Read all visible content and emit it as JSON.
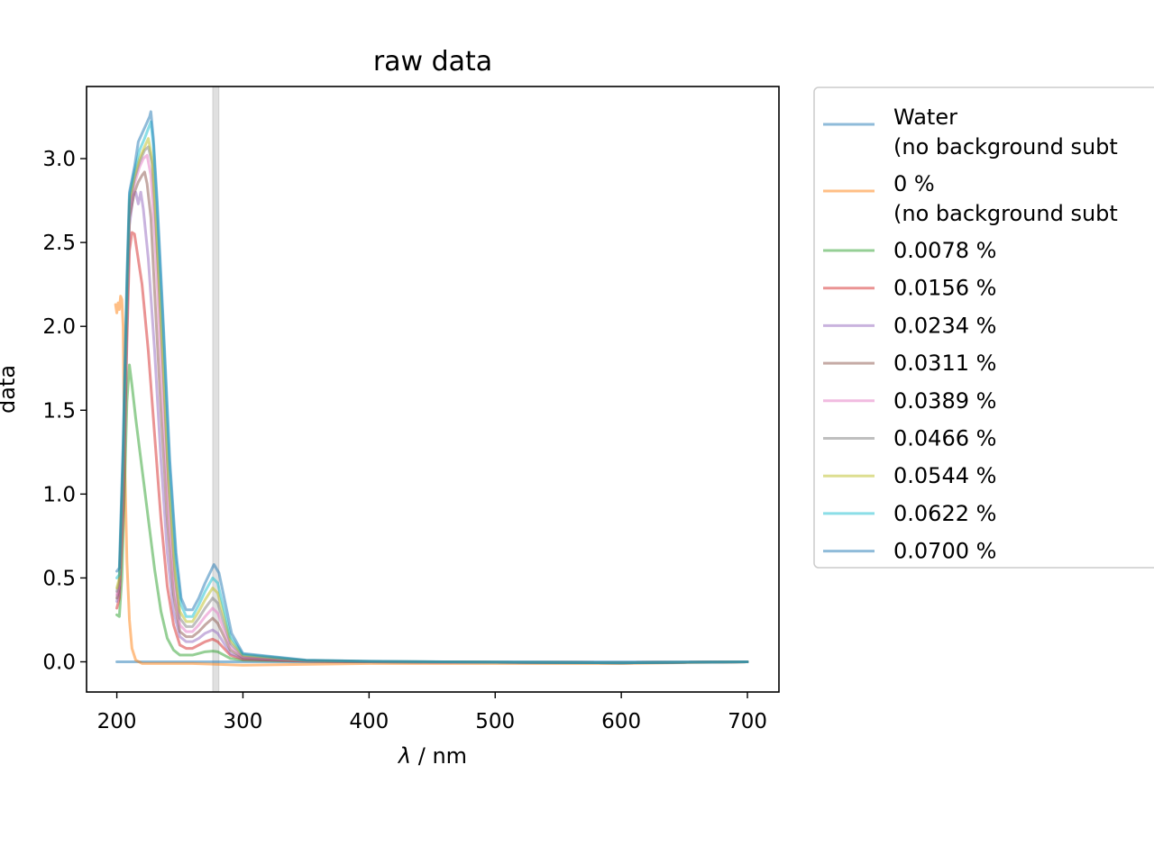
{
  "chart_data": {
    "type": "line",
    "title": "raw data",
    "xlabel_symbol": "λ",
    "xlabel_unit": " / nm",
    "ylabel": "data",
    "xlim": [
      176,
      725
    ],
    "ylim": [
      -0.18,
      3.43
    ],
    "xticks": [
      200,
      300,
      400,
      500,
      600,
      700
    ],
    "yticks": [
      0.0,
      0.5,
      1.0,
      1.5,
      2.0,
      2.5,
      3.0
    ],
    "ytick_labels": [
      "0.0",
      "0.5",
      "1.0",
      "1.5",
      "2.0",
      "2.5",
      "3.0"
    ],
    "vband": [
      276,
      281
    ],
    "grid": false,
    "legend_position": "outside-right",
    "series": [
      {
        "name": "Water\n(no background subt",
        "color": "#1f77b4",
        "points": [
          [
            200,
            0.0
          ],
          [
            210,
            0.0
          ],
          [
            230,
            0.0
          ],
          [
            300,
            0.0
          ],
          [
            400,
            0.0
          ],
          [
            500,
            0.0
          ],
          [
            600,
            0.0
          ],
          [
            700,
            0.0
          ]
        ]
      },
      {
        "name": "0 %\n(no background subt",
        "color": "#ff7f0e",
        "points": [
          [
            199,
            2.13
          ],
          [
            200,
            2.08
          ],
          [
            201,
            2.14
          ],
          [
            202,
            2.1
          ],
          [
            203,
            2.18
          ],
          [
            204,
            2.16
          ],
          [
            205,
            2.0
          ],
          [
            206,
            1.3
          ],
          [
            208,
            0.6
          ],
          [
            210,
            0.25
          ],
          [
            212,
            0.08
          ],
          [
            215,
            0.01
          ],
          [
            220,
            -0.01
          ],
          [
            230,
            -0.01
          ],
          [
            260,
            -0.01
          ],
          [
            300,
            -0.02
          ],
          [
            400,
            -0.01
          ],
          [
            500,
            -0.01
          ],
          [
            600,
            -0.01
          ],
          [
            700,
            0.0
          ]
        ]
      },
      {
        "name": "0.0078 %",
        "color": "#2ca02c",
        "points": [
          [
            200,
            0.28
          ],
          [
            202,
            0.27
          ],
          [
            204,
            0.5
          ],
          [
            206,
            1.0
          ],
          [
            208,
            1.55
          ],
          [
            210,
            1.77
          ],
          [
            212,
            1.65
          ],
          [
            215,
            1.45
          ],
          [
            220,
            1.15
          ],
          [
            225,
            0.85
          ],
          [
            230,
            0.55
          ],
          [
            235,
            0.3
          ],
          [
            240,
            0.14
          ],
          [
            245,
            0.07
          ],
          [
            250,
            0.04
          ],
          [
            255,
            0.04
          ],
          [
            260,
            0.04
          ],
          [
            265,
            0.05
          ],
          [
            270,
            0.06
          ],
          [
            276,
            0.064
          ],
          [
            280,
            0.06
          ],
          [
            285,
            0.04
          ],
          [
            290,
            0.02
          ],
          [
            300,
            0.01
          ],
          [
            350,
            0.003
          ],
          [
            400,
            0.0
          ],
          [
            500,
            -0.003
          ],
          [
            600,
            -0.006
          ],
          [
            700,
            0.0
          ]
        ]
      },
      {
        "name": "0.0156 %",
        "color": "#d62728",
        "points": [
          [
            200,
            0.32
          ],
          [
            202,
            0.38
          ],
          [
            205,
            0.9
          ],
          [
            208,
            1.9
          ],
          [
            210,
            2.45
          ],
          [
            212,
            2.56
          ],
          [
            214,
            2.55
          ],
          [
            216,
            2.45
          ],
          [
            220,
            2.25
          ],
          [
            225,
            1.85
          ],
          [
            230,
            1.35
          ],
          [
            235,
            0.85
          ],
          [
            240,
            0.45
          ],
          [
            245,
            0.22
          ],
          [
            250,
            0.1
          ],
          [
            255,
            0.08
          ],
          [
            260,
            0.08
          ],
          [
            265,
            0.1
          ],
          [
            270,
            0.12
          ],
          [
            276,
            0.135
          ],
          [
            280,
            0.12
          ],
          [
            285,
            0.08
          ],
          [
            290,
            0.04
          ],
          [
            300,
            0.015
          ],
          [
            350,
            0.004
          ],
          [
            400,
            0.0
          ],
          [
            500,
            -0.003
          ],
          [
            600,
            -0.006
          ],
          [
            700,
            0.0
          ]
        ]
      },
      {
        "name": "0.0234 %",
        "color": "#9467bd",
        "points": [
          [
            200,
            0.36
          ],
          [
            202,
            0.42
          ],
          [
            205,
            1.0
          ],
          [
            208,
            2.0
          ],
          [
            210,
            2.6
          ],
          [
            213,
            2.78
          ],
          [
            215,
            2.8
          ],
          [
            217,
            2.73
          ],
          [
            219,
            2.8
          ],
          [
            221,
            2.7
          ],
          [
            225,
            2.4
          ],
          [
            230,
            1.85
          ],
          [
            235,
            1.2
          ],
          [
            240,
            0.65
          ],
          [
            245,
            0.3
          ],
          [
            250,
            0.15
          ],
          [
            255,
            0.12
          ],
          [
            260,
            0.12
          ],
          [
            265,
            0.14
          ],
          [
            270,
            0.17
          ],
          [
            276,
            0.19
          ],
          [
            280,
            0.17
          ],
          [
            285,
            0.11
          ],
          [
            290,
            0.05
          ],
          [
            300,
            0.02
          ],
          [
            350,
            0.004
          ],
          [
            400,
            0.0
          ],
          [
            500,
            -0.003
          ],
          [
            600,
            -0.006
          ],
          [
            700,
            0.0
          ]
        ]
      },
      {
        "name": "0.0311 %",
        "color": "#8c564b",
        "points": [
          [
            200,
            0.38
          ],
          [
            202,
            0.44
          ],
          [
            205,
            1.05
          ],
          [
            208,
            2.05
          ],
          [
            210,
            2.65
          ],
          [
            214,
            2.8
          ],
          [
            217,
            2.86
          ],
          [
            220,
            2.9
          ],
          [
            222,
            2.92
          ],
          [
            224,
            2.85
          ],
          [
            227,
            2.65
          ],
          [
            230,
            2.2
          ],
          [
            235,
            1.5
          ],
          [
            240,
            0.85
          ],
          [
            245,
            0.4
          ],
          [
            250,
            0.18
          ],
          [
            255,
            0.15
          ],
          [
            260,
            0.15
          ],
          [
            265,
            0.18
          ],
          [
            270,
            0.22
          ],
          [
            276,
            0.26
          ],
          [
            280,
            0.23
          ],
          [
            285,
            0.15
          ],
          [
            290,
            0.07
          ],
          [
            300,
            0.025
          ],
          [
            350,
            0.005
          ],
          [
            400,
            0.0
          ],
          [
            500,
            -0.003
          ],
          [
            600,
            -0.006
          ],
          [
            700,
            0.0
          ]
        ]
      },
      {
        "name": "0.0389 %",
        "color": "#e377c2",
        "points": [
          [
            200,
            0.4
          ],
          [
            202,
            0.46
          ],
          [
            205,
            1.1
          ],
          [
            208,
            2.1
          ],
          [
            210,
            2.7
          ],
          [
            214,
            2.85
          ],
          [
            218,
            2.95
          ],
          [
            221,
            3.0
          ],
          [
            224,
            3.02
          ],
          [
            227,
            2.9
          ],
          [
            230,
            2.55
          ],
          [
            235,
            1.8
          ],
          [
            240,
            1.0
          ],
          [
            245,
            0.48
          ],
          [
            250,
            0.22
          ],
          [
            255,
            0.18
          ],
          [
            260,
            0.18
          ],
          [
            265,
            0.22
          ],
          [
            270,
            0.27
          ],
          [
            276,
            0.32
          ],
          [
            280,
            0.29
          ],
          [
            285,
            0.19
          ],
          [
            290,
            0.09
          ],
          [
            300,
            0.03
          ],
          [
            350,
            0.006
          ],
          [
            400,
            0.001
          ],
          [
            500,
            -0.003
          ],
          [
            600,
            -0.006
          ],
          [
            700,
            0.0
          ]
        ]
      },
      {
        "name": "0.0466 %",
        "color": "#7f7f7f",
        "points": [
          [
            200,
            0.42
          ],
          [
            202,
            0.48
          ],
          [
            205,
            1.15
          ],
          [
            208,
            2.15
          ],
          [
            210,
            2.72
          ],
          [
            214,
            2.88
          ],
          [
            218,
            2.98
          ],
          [
            222,
            3.05
          ],
          [
            225,
            3.07
          ],
          [
            228,
            2.97
          ],
          [
            231,
            2.6
          ],
          [
            236,
            1.85
          ],
          [
            241,
            1.05
          ],
          [
            246,
            0.52
          ],
          [
            250,
            0.26
          ],
          [
            255,
            0.21
          ],
          [
            260,
            0.21
          ],
          [
            265,
            0.26
          ],
          [
            270,
            0.32
          ],
          [
            276,
            0.38
          ],
          [
            280,
            0.35
          ],
          [
            285,
            0.23
          ],
          [
            290,
            0.11
          ],
          [
            300,
            0.035
          ],
          [
            350,
            0.007
          ],
          [
            400,
            0.002
          ],
          [
            500,
            -0.002
          ],
          [
            600,
            -0.006
          ],
          [
            700,
            0.0
          ]
        ]
      },
      {
        "name": "0.0544 %",
        "color": "#bcbd22",
        "points": [
          [
            200,
            0.44
          ],
          [
            202,
            0.5
          ],
          [
            205,
            1.2
          ],
          [
            208,
            2.2
          ],
          [
            210,
            2.75
          ],
          [
            214,
            2.9
          ],
          [
            218,
            3.0
          ],
          [
            222,
            3.07
          ],
          [
            225,
            3.12
          ],
          [
            228,
            3.0
          ],
          [
            231,
            2.65
          ],
          [
            236,
            1.9
          ],
          [
            241,
            1.1
          ],
          [
            246,
            0.56
          ],
          [
            250,
            0.3
          ],
          [
            255,
            0.24
          ],
          [
            260,
            0.24
          ],
          [
            265,
            0.3
          ],
          [
            270,
            0.37
          ],
          [
            276,
            0.44
          ],
          [
            280,
            0.41
          ],
          [
            285,
            0.27
          ],
          [
            290,
            0.13
          ],
          [
            300,
            0.04
          ],
          [
            350,
            0.008
          ],
          [
            400,
            0.002
          ],
          [
            500,
            -0.002
          ],
          [
            600,
            -0.006
          ],
          [
            700,
            0.0
          ]
        ]
      },
      {
        "name": "0.0622 %",
        "color": "#17becf",
        "points": [
          [
            200,
            0.5
          ],
          [
            202,
            0.52
          ],
          [
            205,
            1.25
          ],
          [
            208,
            2.25
          ],
          [
            210,
            2.78
          ],
          [
            214,
            2.93
          ],
          [
            218,
            3.05
          ],
          [
            222,
            3.12
          ],
          [
            225,
            3.18
          ],
          [
            227,
            3.22
          ],
          [
            229,
            3.08
          ],
          [
            232,
            2.7
          ],
          [
            237,
            1.95
          ],
          [
            242,
            1.15
          ],
          [
            247,
            0.6
          ],
          [
            251,
            0.34
          ],
          [
            255,
            0.27
          ],
          [
            260,
            0.27
          ],
          [
            265,
            0.34
          ],
          [
            270,
            0.42
          ],
          [
            276,
            0.5
          ],
          [
            280,
            0.47
          ],
          [
            285,
            0.31
          ],
          [
            290,
            0.15
          ],
          [
            300,
            0.045
          ],
          [
            350,
            0.009
          ],
          [
            400,
            0.003
          ],
          [
            500,
            -0.002
          ],
          [
            600,
            -0.006
          ],
          [
            700,
            0.0
          ]
        ]
      },
      {
        "name": "0.0700 %",
        "color": "#1f77b4",
        "points": [
          [
            200,
            0.54
          ],
          [
            202,
            0.56
          ],
          [
            205,
            1.3
          ],
          [
            208,
            2.3
          ],
          [
            210,
            2.8
          ],
          [
            214,
            2.95
          ],
          [
            217,
            3.1
          ],
          [
            220,
            3.15
          ],
          [
            223,
            3.2
          ],
          [
            226,
            3.25
          ],
          [
            227,
            3.28
          ],
          [
            229,
            3.12
          ],
          [
            232,
            2.75
          ],
          [
            237,
            2.0
          ],
          [
            242,
            1.2
          ],
          [
            247,
            0.65
          ],
          [
            251,
            0.38
          ],
          [
            255,
            0.31
          ],
          [
            260,
            0.31
          ],
          [
            265,
            0.38
          ],
          [
            270,
            0.47
          ],
          [
            277,
            0.58
          ],
          [
            281,
            0.53
          ],
          [
            286,
            0.35
          ],
          [
            291,
            0.17
          ],
          [
            300,
            0.05
          ],
          [
            350,
            0.01
          ],
          [
            400,
            0.003
          ],
          [
            500,
            -0.002
          ],
          [
            600,
            -0.006
          ],
          [
            700,
            0.0
          ]
        ]
      }
    ]
  }
}
